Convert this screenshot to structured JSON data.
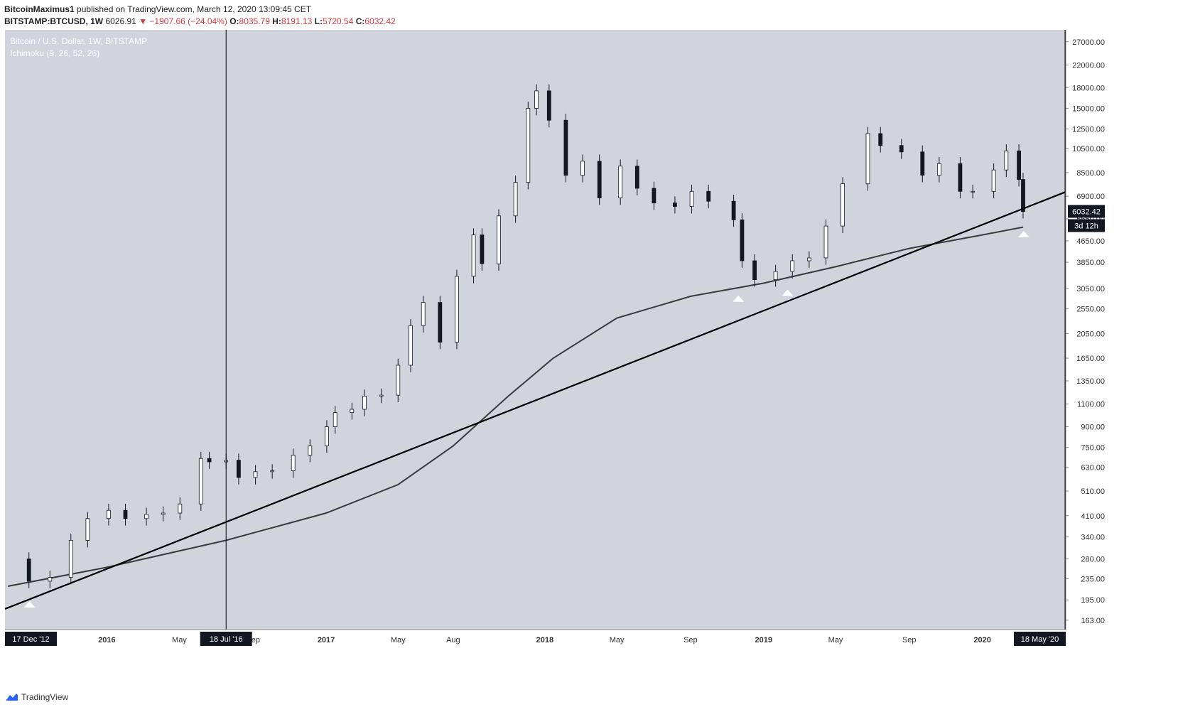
{
  "header": {
    "author": "BitcoinMaximus1",
    "published": "published on TradingView.com, March 12, 2020 13:09:45 CET",
    "symbol": "BITSTAMP:BTCUSD",
    "interval": "1W",
    "last": "6026.91",
    "change": "−1907.66 (−24.04%)",
    "o_label": "O:",
    "o": "8035.79",
    "h_label": "H:",
    "h": "8191.13",
    "l_label": "L:",
    "l": "5720.54",
    "c_label": "C:",
    "c": "6032.42"
  },
  "legend": {
    "line1": "Bitcoin / U.S. Dollar, 1W, BITSTAMP",
    "line2": "Ichimoku (9, 26, 52, 26)"
  },
  "colors": {
    "plot_bg": "#d1d4dc",
    "candle_up": "#ffffff",
    "candle_down": "#131722",
    "trendline": "#000000",
    "ma_line": "#3a3a3a",
    "accent_red": "#d9383a"
  },
  "footer": {
    "brand": "TradingView"
  },
  "chart_data": {
    "type": "line",
    "yscale": "log",
    "ylim": [
      150,
      30000
    ],
    "y_ticks": [
      "27000.00",
      "22000.00",
      "18000.00",
      "15000.00",
      "12500.00",
      "10500.00",
      "8500.00",
      "6900.00",
      "5650.00",
      "4650.00",
      "3850.00",
      "3050.00",
      "2550.00",
      "2050.00",
      "1650.00",
      "1350.00",
      "1100.00",
      "900.00",
      "750.00",
      "630.00",
      "510.00",
      "410.00",
      "340.00",
      "280.00",
      "235.00",
      "195.00",
      "163.00"
    ],
    "y_tick_values": [
      27000,
      22000,
      18000,
      15000,
      12500,
      10500,
      8500,
      6900,
      5650,
      4650,
      3850,
      3050,
      2550,
      2050,
      1650,
      1350,
      1100,
      900,
      750,
      630,
      510,
      410,
      340,
      280,
      235,
      195,
      163
    ],
    "x_ticks": [
      {
        "label": "ep",
        "date": "2015-09-01"
      },
      {
        "label": "2016",
        "date": "2016-01-01"
      },
      {
        "label": "May",
        "date": "2016-05-01"
      },
      {
        "label": "Sep",
        "date": "2016-09-01"
      },
      {
        "label": "2017",
        "date": "2017-01-01"
      },
      {
        "label": "May",
        "date": "2017-05-01"
      },
      {
        "label": "Aug",
        "date": "2017-08-01"
      },
      {
        "label": "2018",
        "date": "2018-01-01"
      },
      {
        "label": "May",
        "date": "2018-05-01"
      },
      {
        "label": "Sep",
        "date": "2018-09-01"
      },
      {
        "label": "2019",
        "date": "2019-01-01"
      },
      {
        "label": "May",
        "date": "2019-05-01"
      },
      {
        "label": "Sep",
        "date": "2019-09-01"
      },
      {
        "label": "2020",
        "date": "2020-01-01"
      }
    ],
    "x_range": [
      "2015-07-15",
      "2020-05-18"
    ],
    "x_markers": [
      {
        "label": "17 Dec '12",
        "date": "2015-07-20"
      },
      {
        "label": "18 Jul '16",
        "date": "2016-07-18"
      },
      {
        "label": "18 May '20",
        "date": "2020-05-18"
      }
    ],
    "vertical_lines": [
      "2016-07-18",
      "2020-05-18"
    ],
    "price_label": "6032.42",
    "countdown_label": "3d 12h",
    "series": [
      {
        "kind": "weekly close (candles)",
        "x": [
          "2015-07-20",
          "2015-08-24",
          "2015-09-28",
          "2015-11-02",
          "2015-11-30",
          "2016-01-04",
          "2016-02-01",
          "2016-03-07",
          "2016-04-04",
          "2016-05-02",
          "2016-06-06",
          "2016-06-20",
          "2016-07-18",
          "2016-08-08",
          "2016-09-05",
          "2016-10-03",
          "2016-11-07",
          "2016-12-05",
          "2017-01-02",
          "2017-01-16",
          "2017-02-13",
          "2017-03-06",
          "2017-04-03",
          "2017-05-01",
          "2017-05-22",
          "2017-06-12",
          "2017-07-10",
          "2017-08-07",
          "2017-09-04",
          "2017-09-18",
          "2017-10-16",
          "2017-11-13",
          "2017-12-04",
          "2017-12-18",
          "2018-01-08",
          "2018-02-05",
          "2018-03-05",
          "2018-04-02",
          "2018-05-07",
          "2018-06-04",
          "2018-07-02",
          "2018-08-06",
          "2018-09-03",
          "2018-10-01",
          "2018-11-12",
          "2018-11-26",
          "2018-12-17",
          "2019-01-21",
          "2019-02-18",
          "2019-03-18",
          "2019-04-15",
          "2019-05-13",
          "2019-06-24",
          "2019-07-15",
          "2019-08-19",
          "2019-09-23",
          "2019-10-21",
          "2019-11-25",
          "2019-12-16",
          "2020-01-20",
          "2020-02-10",
          "2020-03-02",
          "2020-03-09"
        ],
        "values": [
          280,
          230,
          238,
          330,
          400,
          430,
          400,
          415,
          420,
          455,
          680,
          660,
          670,
          575,
          605,
          610,
          700,
          760,
          900,
          1020,
          1050,
          1180,
          1190,
          1550,
          2200,
          2700,
          1900,
          3400,
          4900,
          3800,
          5800,
          7800,
          15000,
          17500,
          13500,
          8300,
          9400,
          6800,
          9000,
          7400,
          6500,
          6300,
          7200,
          6600,
          5600,
          3900,
          3300,
          3550,
          3900,
          4000,
          5300,
          7700,
          12000,
          10800,
          10200,
          8300,
          9200,
          7200,
          7200,
          8700,
          10300,
          8000,
          6032
        ]
      },
      {
        "kind": "long moving average",
        "x": [
          "2015-07-20",
          "2016-01-01",
          "2016-07-18",
          "2017-01-01",
          "2017-05-01",
          "2017-08-01",
          "2017-11-01",
          "2018-01-15",
          "2018-05-01",
          "2018-09-01",
          "2019-01-01",
          "2019-05-01",
          "2019-09-01",
          "2020-01-01",
          "2020-03-09"
        ],
        "values": [
          220,
          260,
          330,
          420,
          540,
          760,
          1180,
          1650,
          2350,
          2850,
          3200,
          3700,
          4350,
          4900,
          5250
        ]
      },
      {
        "kind": "trendline",
        "x": [
          "2015-07-15",
          "2020-05-18"
        ],
        "values": [
          180,
          7150
        ]
      }
    ],
    "triangle_markers": [
      {
        "date": "2015-08-25",
        "value": 188
      },
      {
        "date": "2018-11-20",
        "value": 2800
      },
      {
        "date": "2019-02-10",
        "value": 2950
      },
      {
        "date": "2020-03-10",
        "value": 4950
      }
    ],
    "grid": false
  }
}
